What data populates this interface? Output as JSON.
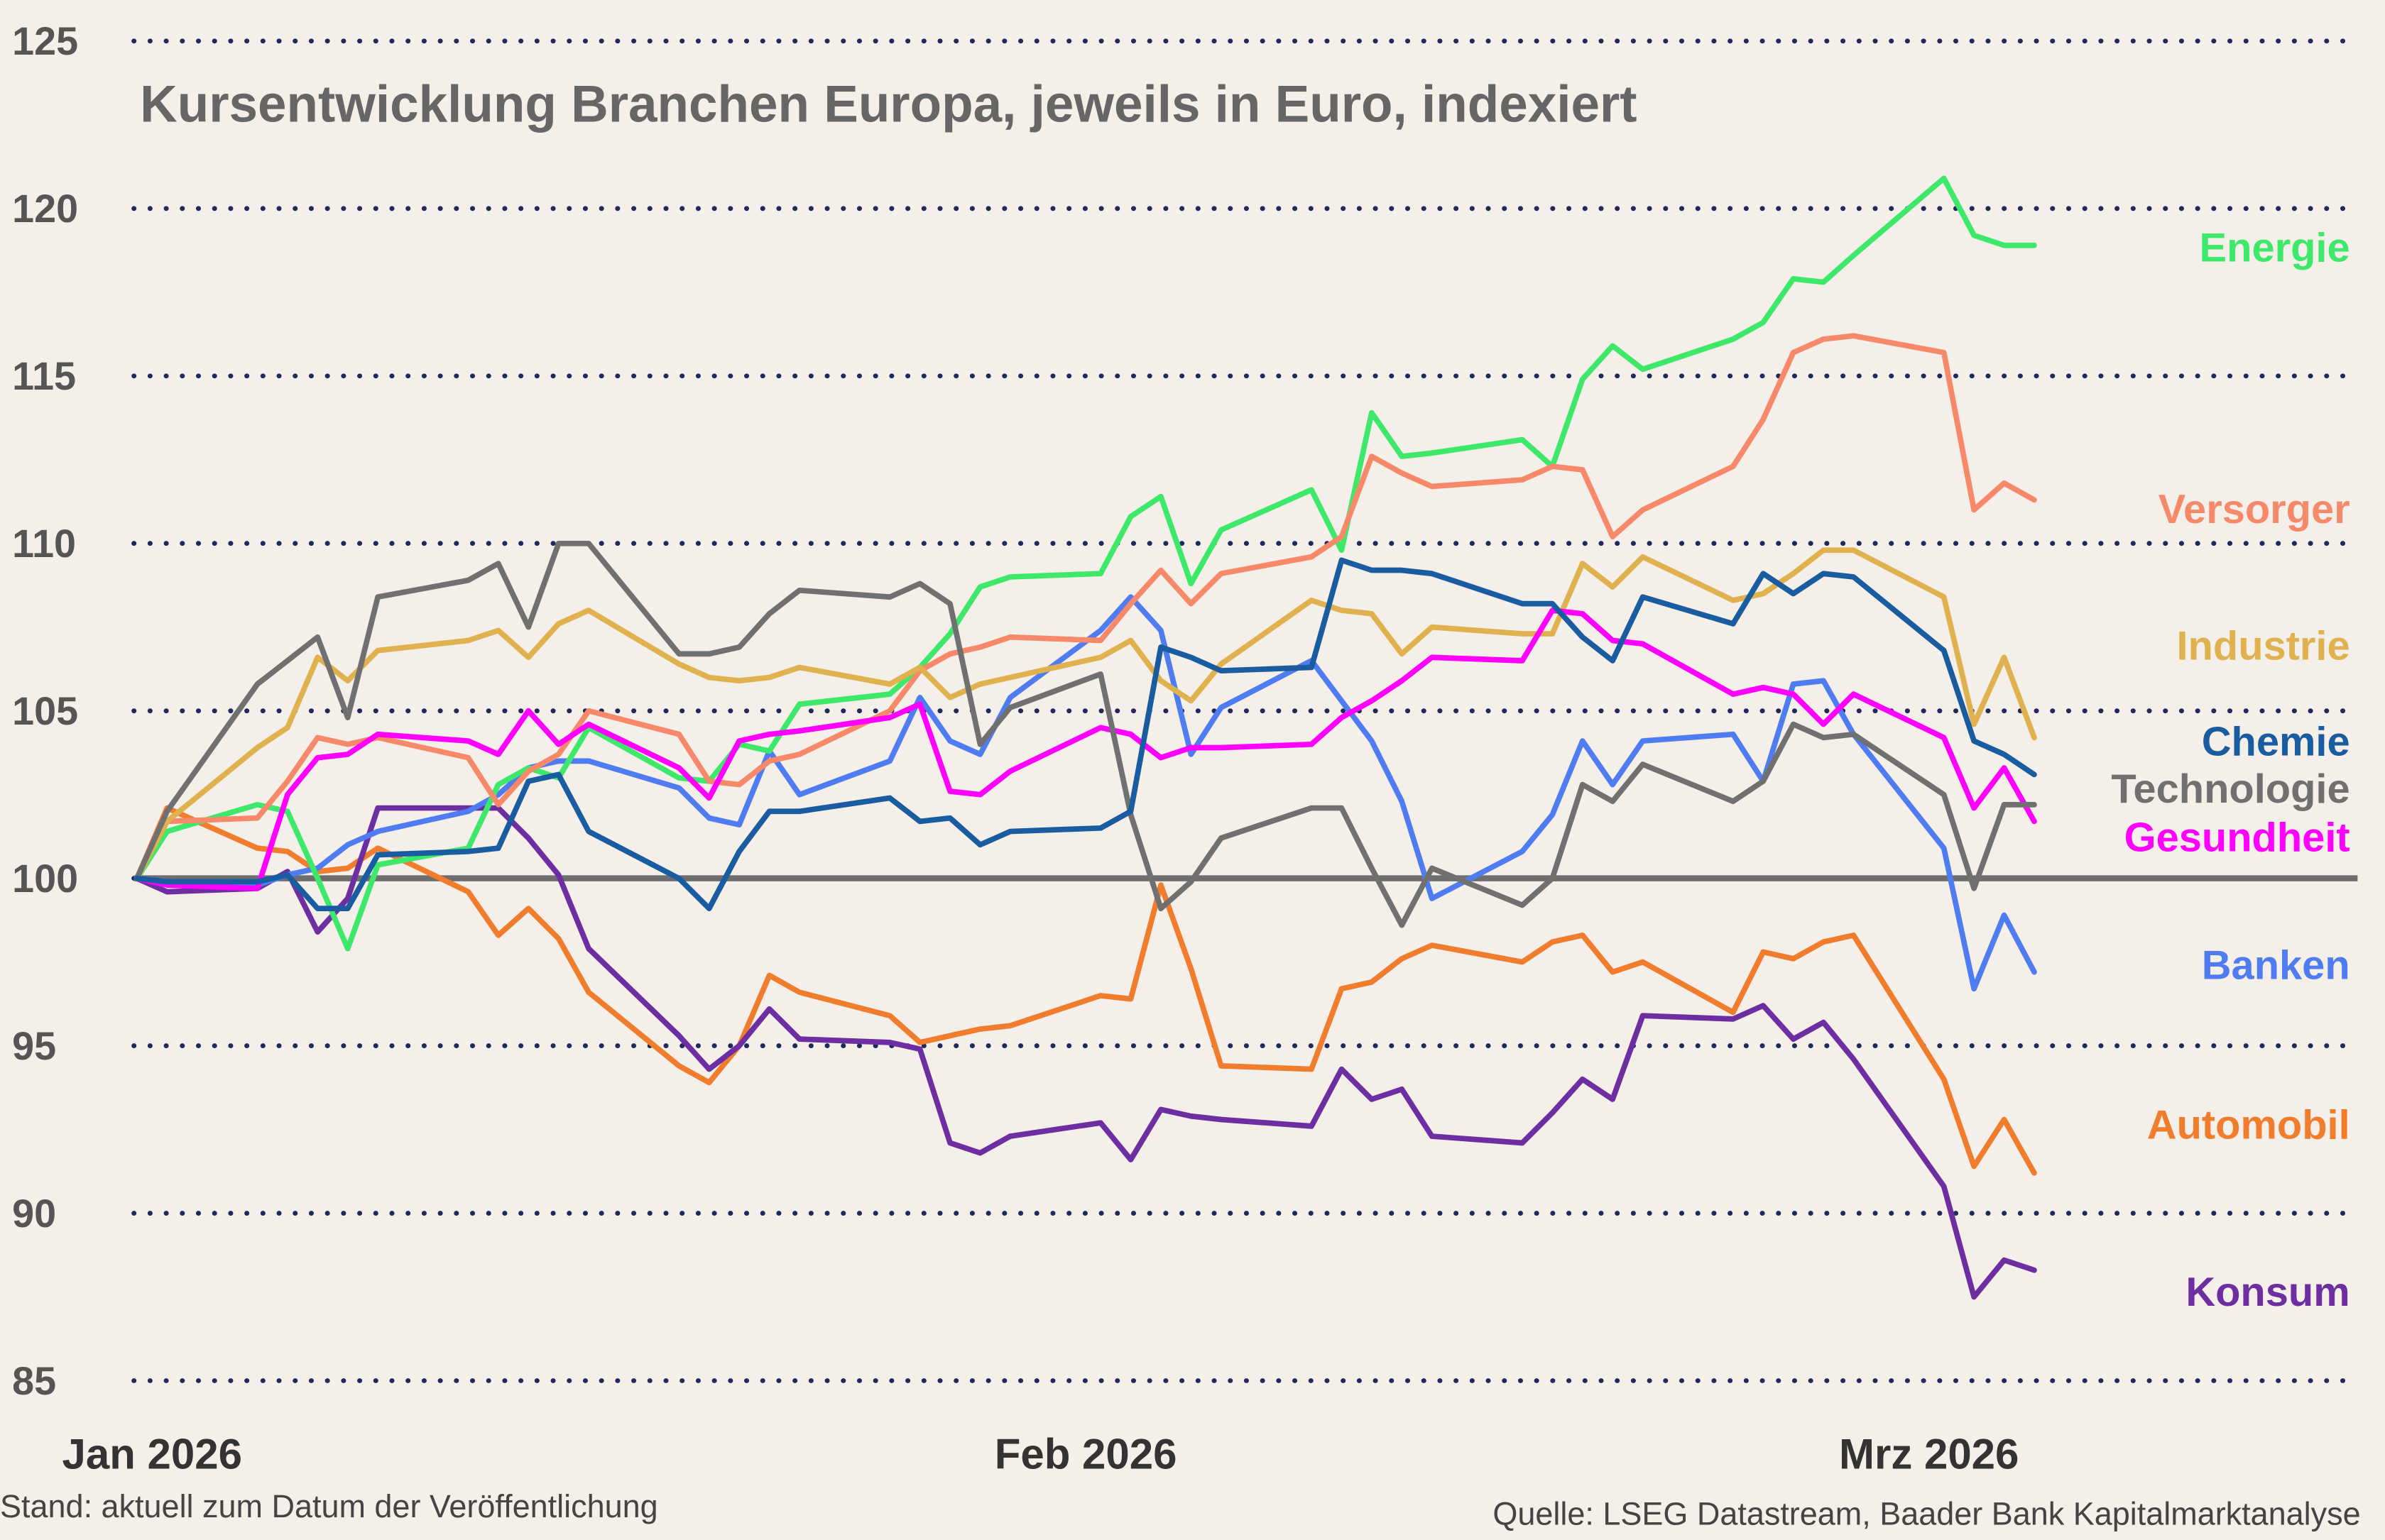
{
  "chart_data": {
    "type": "line",
    "title": "Kursentwicklung Branchen Europa, jeweils in Euro, indexiert",
    "xlabel": "",
    "ylabel": "",
    "ylim": [
      85,
      125
    ],
    "yticks": [
      125,
      120,
      115,
      110,
      105,
      100,
      95,
      90,
      85
    ],
    "xticks": [
      {
        "date": "2026-01-01",
        "label": "Jan 2026"
      },
      {
        "date": "2026-02-01",
        "label": "Feb 2026"
      },
      {
        "date": "2026-03-01",
        "label": "Mrz 2026"
      }
    ],
    "grid": "horizontal dotted",
    "baseline": 100,
    "legend": "right, labels at line ends",
    "dates": [
      "2026-01-01",
      "2026-01-02",
      "2026-01-05",
      "2026-01-06",
      "2026-01-07",
      "2026-01-08",
      "2026-01-09",
      "2026-01-12",
      "2026-01-13",
      "2026-01-14",
      "2026-01-15",
      "2026-01-16",
      "2026-01-19",
      "2026-01-20",
      "2026-01-21",
      "2026-01-22",
      "2026-01-23",
      "2026-01-26",
      "2026-01-27",
      "2026-01-28",
      "2026-01-29",
      "2026-01-30",
      "2026-02-02",
      "2026-02-03",
      "2026-02-04",
      "2026-02-05",
      "2026-02-06",
      "2026-02-09",
      "2026-02-10",
      "2026-02-11",
      "2026-02-12",
      "2026-02-13",
      "2026-02-16",
      "2026-02-17",
      "2026-02-18",
      "2026-02-19",
      "2026-02-20",
      "2026-02-23",
      "2026-02-24",
      "2026-02-25",
      "2026-02-26",
      "2026-02-27",
      "2026-03-02",
      "2026-03-03",
      "2026-03-04",
      "2026-03-05"
    ],
    "series": [
      {
        "name": "Energie",
        "color": "#3ee86a",
        "values": [
          100,
          101.4,
          102.2,
          102,
          100,
          97.9,
          100.4,
          100.9,
          102.8,
          103.3,
          103,
          104.5,
          103,
          102.9,
          104,
          103.8,
          105.2,
          105.5,
          106.3,
          107.3,
          108.7,
          109,
          109.1,
          110.8,
          111.4,
          108.8,
          110.4,
          111.6,
          109.8,
          113.9,
          112.6,
          112.7,
          113.1,
          112.3,
          114.9,
          115.9,
          115.2,
          116.1,
          116.6,
          117.9,
          117.8,
          118.6,
          120.9,
          119.2,
          118.9,
          118.9
        ]
      },
      {
        "name": "Versorger",
        "color": "#f7896b",
        "values": [
          100,
          101.7,
          101.8,
          102.9,
          104.2,
          104,
          104.2,
          103.6,
          102.2,
          103.2,
          103.7,
          105,
          104.3,
          102.9,
          102.8,
          103.5,
          103.7,
          105,
          106.2,
          106.7,
          106.9,
          107.2,
          107.1,
          108.2,
          109.2,
          108.2,
          109.1,
          109.6,
          110.2,
          112.6,
          112.1,
          111.7,
          111.9,
          112.3,
          112.2,
          110.2,
          111,
          112.3,
          113.7,
          115.7,
          116.1,
          116.2,
          115.7,
          111,
          111.8,
          111.3
        ]
      },
      {
        "name": "Industrie",
        "color": "#dfb24f",
        "values": [
          100,
          101.7,
          103.9,
          104.5,
          106.6,
          105.9,
          106.8,
          107.1,
          107.4,
          106.6,
          107.6,
          108,
          106.4,
          106,
          105.9,
          106,
          106.3,
          105.8,
          106.3,
          105.4,
          105.8,
          106,
          106.6,
          107.1,
          105.9,
          105.3,
          106.4,
          108.3,
          108,
          107.9,
          106.7,
          107.5,
          107.3,
          107.3,
          109.4,
          108.7,
          109.6,
          108.3,
          108.5,
          109.1,
          109.8,
          109.8,
          108.4,
          104.6,
          106.6,
          104.2
        ]
      },
      {
        "name": "Chemie",
        "color": "#1a5ca0",
        "values": [
          100,
          99.9,
          99.9,
          100.1,
          99.1,
          99.1,
          100.7,
          100.8,
          100.9,
          102.9,
          103.1,
          101.4,
          100,
          99.1,
          100.8,
          102,
          102,
          102.4,
          101.7,
          101.8,
          101,
          101.4,
          101.5,
          102,
          106.9,
          106.6,
          106.2,
          106.3,
          109.5,
          109.2,
          109.2,
          109.1,
          108.2,
          108.2,
          107.2,
          106.5,
          108.4,
          107.6,
          109.1,
          108.5,
          109.1,
          109,
          106.8,
          104.1,
          103.7,
          103.1
        ]
      },
      {
        "name": "Technologie",
        "color": "#707070",
        "values": [
          100,
          102,
          105.8,
          106.5,
          107.2,
          104.8,
          108.4,
          108.9,
          109.4,
          107.5,
          110,
          110,
          106.7,
          106.7,
          106.9,
          107.9,
          108.6,
          108.4,
          108.8,
          108.2,
          104,
          105.1,
          106.1,
          101.9,
          99.1,
          99.9,
          101.2,
          102.1,
          102.1,
          100.3,
          98.6,
          100.3,
          99.2,
          100,
          102.8,
          102.3,
          103.4,
          102.3,
          102.9,
          104.6,
          104.2,
          104.3,
          102.5,
          99.7,
          102.2,
          102.2
        ]
      },
      {
        "name": "Gesundheit",
        "color": "#ff00ff",
        "values": [
          100,
          99.8,
          99.7,
          102.5,
          103.6,
          103.7,
          104.3,
          104.1,
          103.7,
          105,
          104,
          104.6,
          103.3,
          102.4,
          104.1,
          104.3,
          104.4,
          104.8,
          105.2,
          102.6,
          102.5,
          103.2,
          104.5,
          104.3,
          103.6,
          103.9,
          103.9,
          104,
          104.8,
          105.3,
          105.9,
          106.6,
          106.5,
          108,
          107.9,
          107.1,
          107,
          105.5,
          105.7,
          105.5,
          104.6,
          105.5,
          104.2,
          102.1,
          103.3,
          101.7
        ]
      },
      {
        "name": "Banken",
        "color": "#4f7cf0",
        "values": [
          100,
          99.9,
          99.8,
          100.1,
          100.3,
          101,
          101.4,
          102,
          102.5,
          103.3,
          103.5,
          103.5,
          102.7,
          101.8,
          101.6,
          103.8,
          102.5,
          103.5,
          105.4,
          104.1,
          103.7,
          105.4,
          107.4,
          108.4,
          107.4,
          103.7,
          105.1,
          106.5,
          105.3,
          104.1,
          102.3,
          99.4,
          100.8,
          101.9,
          104.1,
          102.8,
          104.1,
          104.3,
          102.9,
          105.8,
          105.9,
          104.3,
          100.9,
          96.7,
          98.9,
          97.2
        ]
      },
      {
        "name": "Automobil",
        "color": "#ef7d2d",
        "values": [
          100,
          102.1,
          100.9,
          100.8,
          100.2,
          100.3,
          100.9,
          99.6,
          98.3,
          99.1,
          98.2,
          96.6,
          94.4,
          93.9,
          95,
          97.1,
          96.6,
          95.9,
          95.1,
          95.3,
          95.5,
          95.6,
          96.5,
          96.4,
          99.8,
          97.3,
          94.4,
          94.3,
          96.7,
          96.9,
          97.6,
          98,
          97.5,
          98.1,
          98.3,
          97.2,
          97.5,
          96,
          97.8,
          97.6,
          98.1,
          98.3,
          94,
          91.4,
          92.8,
          91.2
        ]
      },
      {
        "name": "Konsum",
        "color": "#6c2ea0",
        "values": [
          100,
          99.6,
          99.7,
          100.2,
          98.4,
          99.4,
          102.1,
          102.1,
          102.1,
          101.2,
          100.1,
          97.9,
          95.3,
          94.3,
          95,
          96.1,
          95.2,
          95.1,
          94.9,
          92.1,
          91.8,
          92.3,
          92.7,
          91.6,
          93.1,
          92.9,
          92.8,
          92.6,
          94.3,
          93.4,
          93.7,
          92.3,
          92.1,
          93,
          94,
          93.4,
          95.9,
          95.8,
          96.2,
          95.2,
          95.7,
          94.6,
          90.8,
          87.5,
          88.6,
          88.3
        ]
      }
    ]
  },
  "footer": {
    "left": "Stand: aktuell zum Datum der Veröffentlichung",
    "right": "Quelle: LSEG Datastream, Baader Bank Kapitalmarktanalyse"
  }
}
